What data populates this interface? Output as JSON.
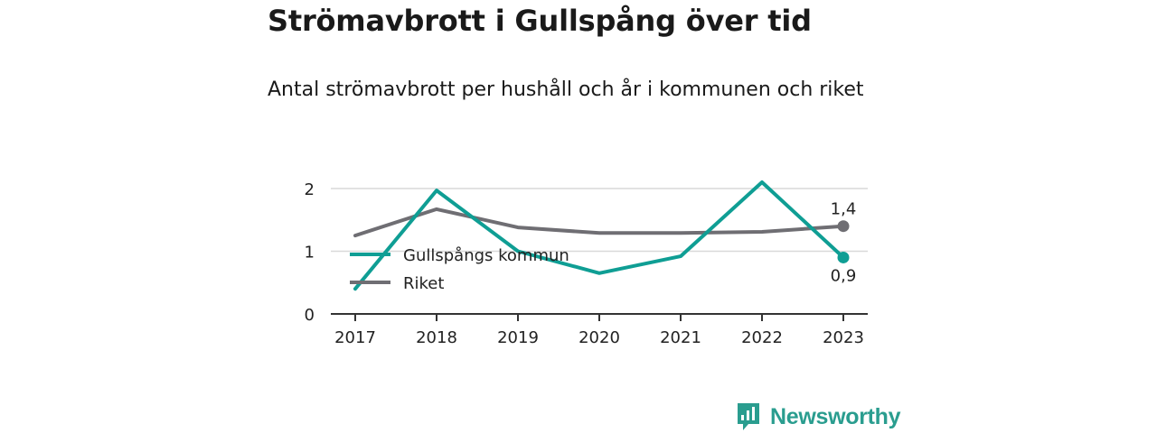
{
  "title": "Strömavbrott i Gullspång över tid",
  "subtitle": "Antal strömavbrott per hushåll och år i kommunen och riket",
  "brand": {
    "name": "Newsworthy"
  },
  "colors": {
    "gullspang": "#0f9e94",
    "riket": "#6f6e73",
    "grid": "#d9d9d9",
    "axis": "#333333"
  },
  "chart_data": {
    "type": "line",
    "x": [
      "2017",
      "2018",
      "2019",
      "2020",
      "2021",
      "2022",
      "2023"
    ],
    "yticks": [
      "0",
      "1",
      "2"
    ],
    "ylim": [
      0,
      2.2
    ],
    "grid": true,
    "legend_position": "center-left",
    "series": [
      {
        "name": "Gullspångs kommun",
        "values": [
          0.4,
          1.97,
          1.0,
          0.65,
          0.92,
          2.1,
          0.9
        ],
        "end_label": "0,9"
      },
      {
        "name": "Riket",
        "values": [
          1.25,
          1.67,
          1.38,
          1.29,
          1.29,
          1.31,
          1.4
        ],
        "end_label": "1,4"
      }
    ]
  }
}
